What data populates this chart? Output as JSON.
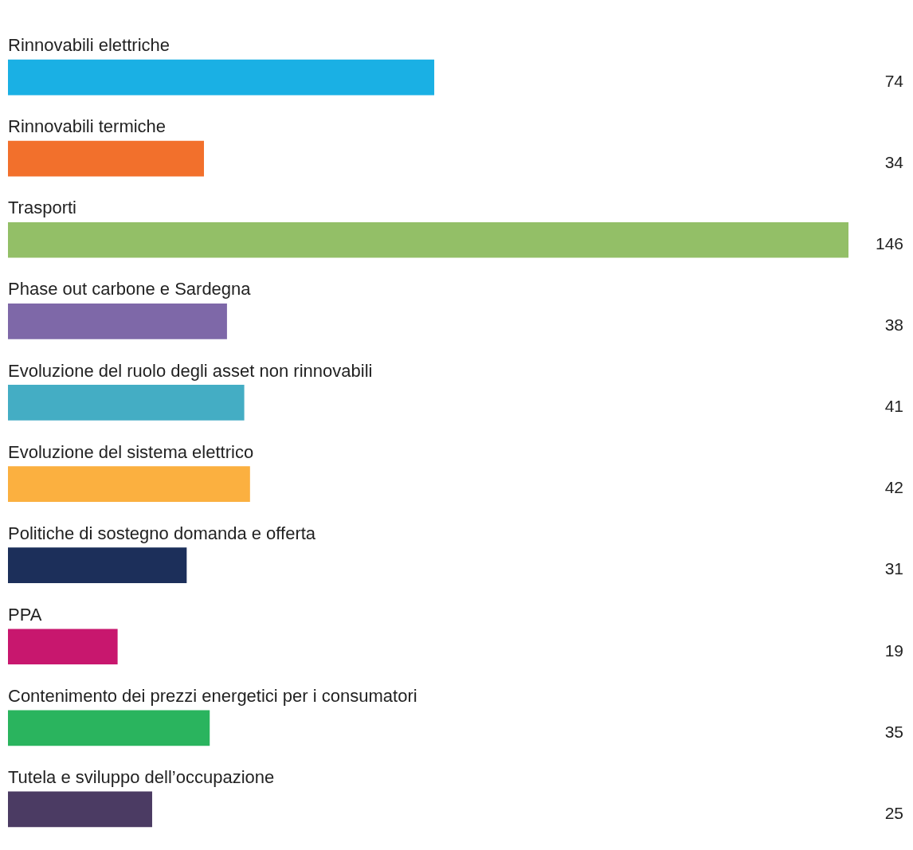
{
  "chart_data": {
    "type": "bar",
    "orientation": "horizontal",
    "categories": [
      "Rinnovabili elettriche",
      "Rinnovabili termiche",
      "Trasporti",
      "Phase out carbone e Sardegna",
      "Evoluzione del ruolo degli asset non rinnovabili",
      "Evoluzione del sistema elettrico",
      "Politiche di sostegno domanda e offerta",
      "PPA",
      "Contenimento dei prezzi energetici per i consumatori",
      "Tutela e sviluppo dell’occupazione"
    ],
    "values": [
      74,
      34,
      146,
      38,
      41,
      42,
      31,
      19,
      35,
      25
    ],
    "colors": [
      "#1ab0e4",
      "#f2702c",
      "#93bf67",
      "#7e68a8",
      "#44adc4",
      "#fbb040",
      "#1c2f5a",
      "#c8176e",
      "#2ab45e",
      "#4b3b63"
    ],
    "data_labels": true
  }
}
